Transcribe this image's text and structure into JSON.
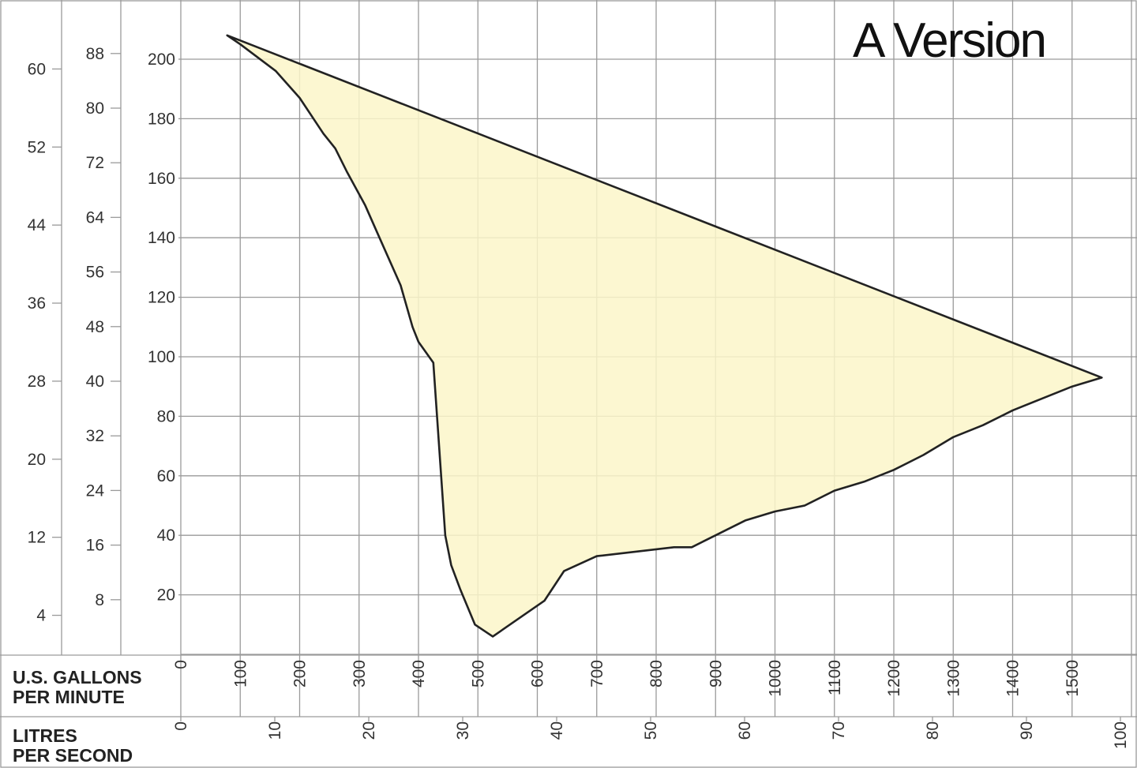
{
  "chart_data": {
    "type": "area",
    "title": "A Version",
    "x_axes": [
      {
        "label_lines": [
          "U.S. GALLONS",
          "PER MINUTE"
        ],
        "ticks": [
          "0",
          "100",
          "200",
          "300",
          "400",
          "500",
          "600",
          "700",
          "800",
          "900",
          "1000",
          "1100",
          "1200",
          "1300",
          "1400",
          "1500"
        ],
        "range": [
          0,
          1600
        ]
      },
      {
        "label_lines": [
          "LITRES",
          "PER SECOND"
        ],
        "ticks": [
          "0",
          "10",
          "20",
          "30",
          "40",
          "50",
          "60",
          "70",
          "80",
          "90",
          "100"
        ],
        "range": [
          0,
          100
        ]
      }
    ],
    "y_axes": [
      {
        "ticks": [
          "4",
          "12",
          "20",
          "28",
          "36",
          "44",
          "52",
          "60"
        ],
        "values": [
          4,
          12,
          20,
          28,
          36,
          44,
          52,
          60
        ]
      },
      {
        "ticks": [
          "8",
          "16",
          "24",
          "32",
          "40",
          "48",
          "56",
          "64",
          "72",
          "80",
          "88"
        ],
        "values": [
          8,
          16,
          24,
          32,
          40,
          48,
          56,
          64,
          72,
          80,
          88
        ]
      },
      {
        "ticks": [
          "20",
          "40",
          "60",
          "80",
          "100",
          "120",
          "140",
          "160",
          "180",
          "200"
        ],
        "values": [
          20,
          40,
          60,
          80,
          100,
          120,
          140,
          160,
          180,
          200
        ],
        "range": [
          -20,
          220
        ]
      }
    ],
    "grid": true,
    "series": [
      {
        "color": "#fbf6c9",
        "opacity": 0.85,
        "outline": [
          [
            78,
            208
          ],
          [
            100,
            205
          ],
          [
            160,
            196
          ],
          [
            200,
            187
          ],
          [
            240,
            175
          ],
          [
            260,
            170
          ],
          [
            280,
            162
          ],
          [
            310,
            151
          ],
          [
            330,
            142
          ],
          [
            370,
            124
          ],
          [
            390,
            110
          ],
          [
            400,
            105
          ],
          [
            425,
            98
          ],
          [
            445,
            40
          ],
          [
            455,
            30
          ],
          [
            470,
            22
          ],
          [
            495,
            10
          ],
          [
            525,
            6
          ],
          [
            612,
            18
          ],
          [
            645,
            28
          ],
          [
            700,
            33
          ],
          [
            830,
            36
          ],
          [
            860,
            36
          ],
          [
            880,
            38
          ],
          [
            900,
            40
          ],
          [
            920,
            42
          ],
          [
            950,
            45
          ],
          [
            1000,
            48
          ],
          [
            1050,
            50
          ],
          [
            1100,
            55
          ],
          [
            1150,
            58
          ],
          [
            1200,
            62
          ],
          [
            1250,
            67
          ],
          [
            1300,
            73
          ],
          [
            1350,
            77
          ],
          [
            1400,
            82
          ],
          [
            1450,
            86
          ],
          [
            1500,
            90
          ],
          [
            1550,
            93
          ]
        ]
      }
    ]
  }
}
